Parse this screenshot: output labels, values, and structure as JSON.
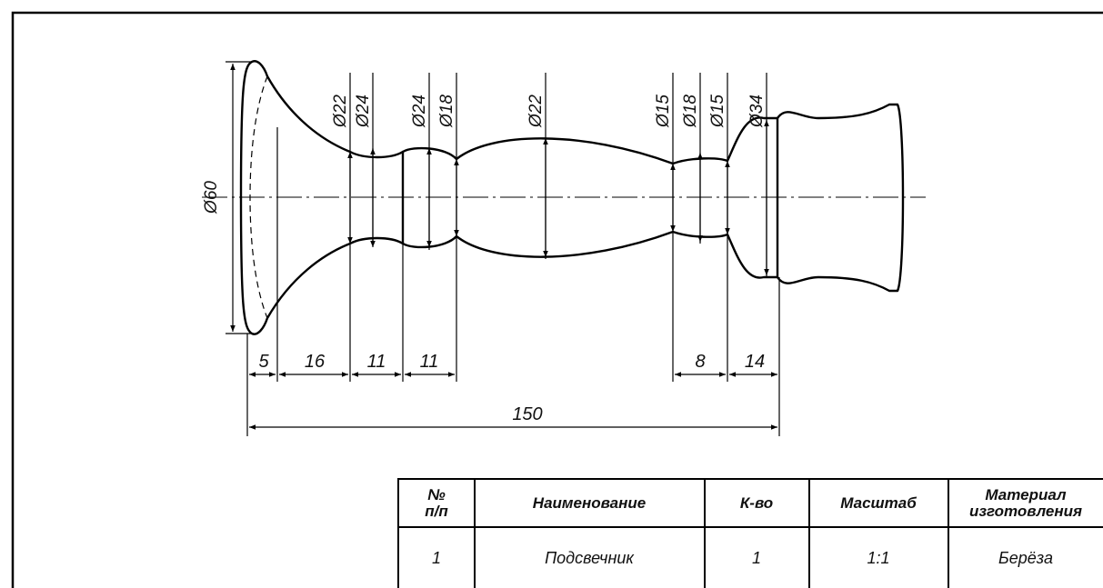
{
  "drawing": {
    "diameters": {
      "d60": "Ø60",
      "d22a": "Ø22",
      "d24a": "Ø24",
      "d24b": "Ø24",
      "d18a": "Ø18",
      "d22b": "Ø22",
      "d15a": "Ø15",
      "d18b": "Ø18",
      "d15b": "Ø15",
      "d34": "Ø34"
    },
    "lengths": {
      "l5": "5",
      "l16": "16",
      "l11a": "11",
      "l11b": "11",
      "l8": "8",
      "l14": "14",
      "total": "150"
    }
  },
  "table": {
    "headers": {
      "num": [
        "№",
        "п/п"
      ],
      "name": "Наименование",
      "qty": "К-во",
      "scale": "Масштаб",
      "material": [
        "Материал",
        "изготовления"
      ]
    },
    "row": {
      "num": "1",
      "name": "Подсвечник",
      "qty": "1",
      "scale": "1:1",
      "material": "Берёза"
    }
  }
}
